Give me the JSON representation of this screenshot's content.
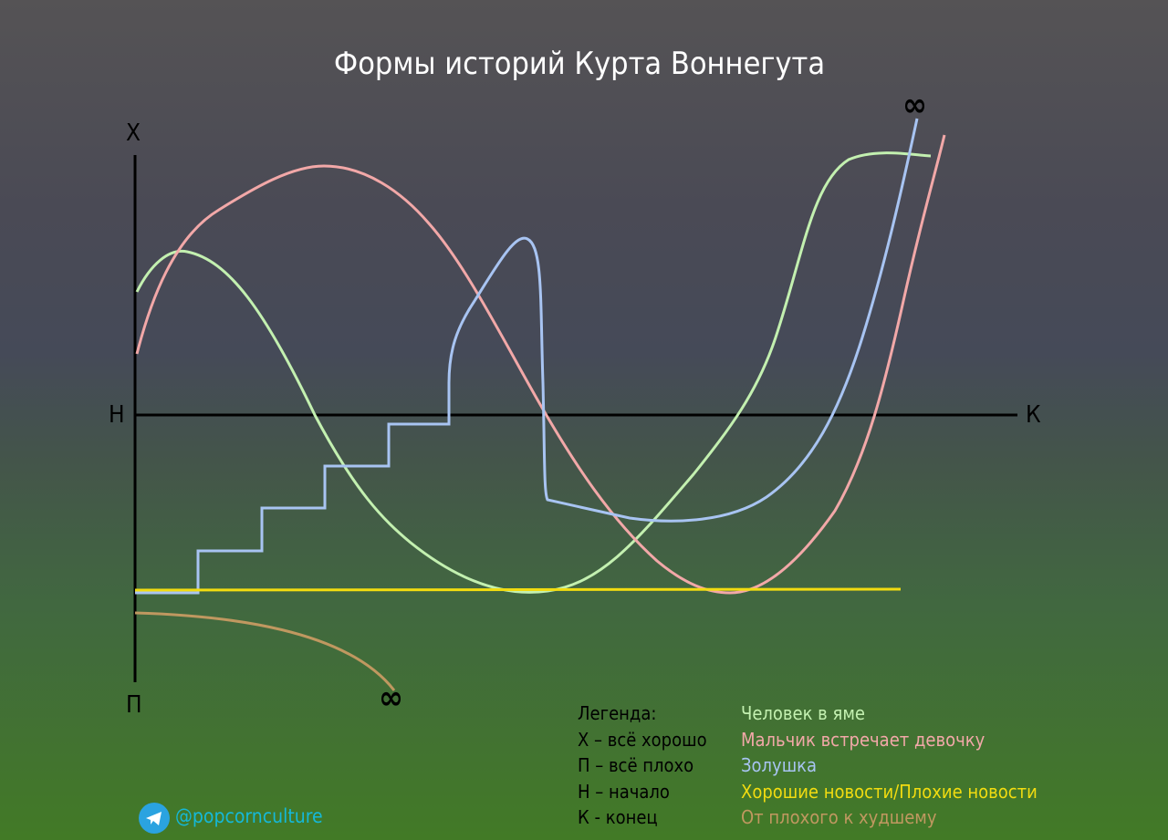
{
  "title": "Формы историй Курта Воннегута",
  "axes": {
    "top": "Х",
    "bottom": "П",
    "start": "Н",
    "end": "К",
    "infinity": "∞"
  },
  "legend": {
    "heading": "Легенда:",
    "keys": [
      "Х – всё хорошо",
      "П – всё плохо",
      "Н – начало",
      "К - конец"
    ],
    "series": [
      {
        "name": "Человек в яме",
        "color": "#c3f0b0"
      },
      {
        "name": "Мальчик встречает девочку",
        "color": "#f2a8a8"
      },
      {
        "name": "Золушка",
        "color": "#a8c4f2"
      },
      {
        "name": "Хорошие новости/Плохие новости",
        "color": "#f2dc10"
      },
      {
        "name": "От плохого к худшему",
        "color": "#c09860"
      }
    ]
  },
  "footer": {
    "handle": "@popcornculture",
    "icon": "telegram-icon"
  }
}
